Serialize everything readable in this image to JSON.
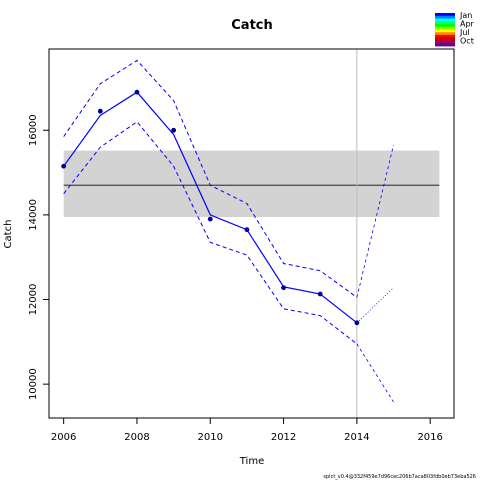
{
  "chart_data": {
    "type": "line",
    "title": "Catch",
    "xlabel": "Time",
    "ylabel": "Catch",
    "xlim": [
      2005.6,
      2016.65
    ],
    "ylim": [
      9200,
      17920
    ],
    "x_ticks": [
      2006,
      2008,
      2010,
      2012,
      2014,
      2016
    ],
    "y_ticks": [
      10000,
      12000,
      14000,
      16000
    ],
    "observed": {
      "x": [
        2006,
        2007,
        2008,
        2009,
        2010,
        2011,
        2012,
        2013,
        2014
      ],
      "y": [
        15150,
        16450,
        16900,
        16000,
        13900,
        13650,
        12280,
        12130,
        11450
      ]
    },
    "estimate": {
      "x": [
        2006,
        2007,
        2008,
        2009,
        2010,
        2011,
        2012,
        2013,
        2014
      ],
      "y": [
        15150,
        16350,
        16900,
        15900,
        14000,
        13650,
        12300,
        12130,
        11450
      ]
    },
    "upper_ci": {
      "x": [
        2006,
        2007,
        2008,
        2009,
        2010,
        2011,
        2012,
        2013,
        2014
      ],
      "y": [
        15850,
        17100,
        17650,
        16700,
        14700,
        14270,
        12850,
        12680,
        12050
      ]
    },
    "lower_ci": {
      "x": [
        2006,
        2007,
        2008,
        2009,
        2010,
        2011,
        2012,
        2013,
        2014
      ],
      "y": [
        14500,
        15600,
        16200,
        15150,
        13350,
        13050,
        11780,
        11620,
        10950
      ]
    },
    "forecast": {
      "x": [
        2014,
        2015
      ],
      "mean": [
        11450,
        12280
      ],
      "upper": [
        12050,
        15650
      ],
      "lower": [
        10950,
        9580
      ]
    },
    "msy_band": {
      "x_range": [
        2006,
        2016.25
      ],
      "lower": 13950,
      "upper": 15520,
      "line": 14700
    },
    "vline_x": 2014,
    "legend": {
      "labels": [
        "Jan",
        "Apr",
        "Jul",
        "Oct"
      ],
      "colors": [
        "#0000ff",
        "#0080ff",
        "#00ffff",
        "#00ff80",
        "#00ff00",
        "#80ff00",
        "#ffff00",
        "#ff8000",
        "#ff0000",
        "#cc0000",
        "#990066",
        "#660099"
      ]
    },
    "footer": "spict_v0.4@332f459e7d96cec206b7aca803fdb0eb73eba526",
    "colors": {
      "line": "#0000ff",
      "band": "#d3d3d3",
      "band_line": "#444444",
      "vline": "#bebebe"
    }
  }
}
